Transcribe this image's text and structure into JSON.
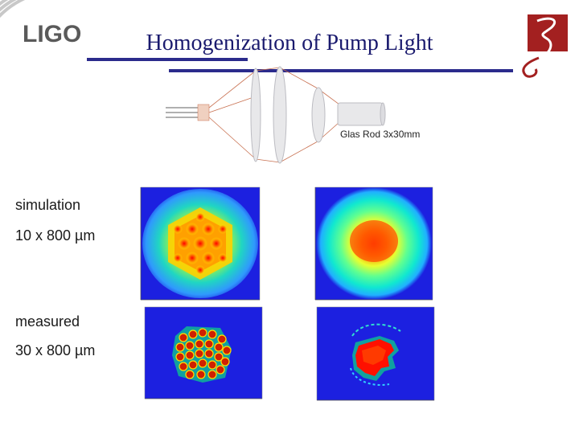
{
  "slide": {
    "title": "Homogenization of Pump Light",
    "logo_text": "LIGO",
    "diagram_label": "Glas Rod 3x30mm",
    "labels": {
      "simulation": "simulation",
      "simulation_dims": "10 x 800 µm",
      "measured": "measured",
      "measured_dims": "30 x 800 µm"
    }
  },
  "colors": {
    "title": "#1a1a6e",
    "bar": "#2b2b8c",
    "logo": "#5a5a5a",
    "emblem": "#a32020",
    "ray": "#c87050",
    "plot_blue": "#1c20e0"
  }
}
